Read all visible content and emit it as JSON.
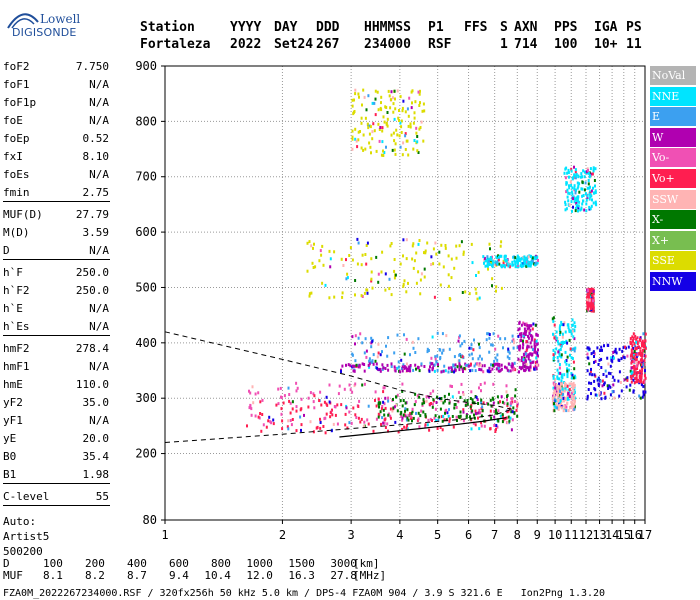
{
  "logo": {
    "line1": "Lowell",
    "line2": "DIGISONDE"
  },
  "header": {
    "labels": [
      "Station",
      "YYYY",
      "DAY",
      "DDD",
      "HHMMSS",
      "P1",
      "FFS",
      "S",
      "AXN",
      "PPS",
      "IGA",
      "PS"
    ],
    "values": [
      "Fortaleza",
      "2022",
      "Set24",
      "267",
      "234000",
      "RSF",
      "",
      "1",
      "714",
      "100",
      "10+",
      "11"
    ]
  },
  "params": {
    "group1": [
      {
        "k": "foF2",
        "v": "7.750"
      },
      {
        "k": "foF1",
        "v": "N/A"
      },
      {
        "k": "foF1p",
        "v": "N/A"
      },
      {
        "k": "foE",
        "v": "N/A"
      },
      {
        "k": "foEp",
        "v": "0.52"
      },
      {
        "k": "fxI",
        "v": "8.10"
      },
      {
        "k": "foEs",
        "v": "N/A"
      },
      {
        "k": "fmin",
        "v": "2.75"
      }
    ],
    "group2": [
      {
        "k": "MUF(D)",
        "v": "27.79"
      },
      {
        "k": "M(D)",
        "v": "3.59"
      },
      {
        "k": "D",
        "v": "N/A"
      }
    ],
    "group3": [
      {
        "k": "h`F",
        "v": "250.0"
      },
      {
        "k": "h`F2",
        "v": "250.0"
      },
      {
        "k": "h`E",
        "v": "N/A"
      },
      {
        "k": "h`Es",
        "v": "N/A"
      }
    ],
    "group4": [
      {
        "k": "hmF2",
        "v": "278.4"
      },
      {
        "k": "hmF1",
        "v": "N/A"
      },
      {
        "k": "hmE",
        "v": "110.0"
      },
      {
        "k": "yF2",
        "v": "35.0"
      },
      {
        "k": "yF1",
        "v": "N/A"
      },
      {
        "k": "yE",
        "v": "20.0"
      },
      {
        "k": "B0",
        "v": "35.4"
      },
      {
        "k": "B1",
        "v": "1.98"
      }
    ],
    "group5": [
      {
        "k": "C-level",
        "v": "55"
      }
    ]
  },
  "auto": {
    "line1": "Auto:",
    "line2": "Artist5",
    "line3": "500200"
  },
  "muf_table": {
    "d_label": "D",
    "d_values": [
      "100",
      "200",
      "400",
      "600",
      "800",
      "1000",
      "1500",
      "3000"
    ],
    "d_unit": "[km]",
    "m_label": "MUF",
    "m_values": [
      "8.1",
      "8.2",
      "8.7",
      "9.4",
      "10.4",
      "12.0",
      "16.3",
      "27.8"
    ],
    "m_unit": "[MHz]"
  },
  "footer": "FZA0M_2022267234000.RSF / 320fx256h 50 kHz 5.0 km / DPS-4 FZA0M 904 / 3.9 S 321.6 E   Ion2Png 1.3.20",
  "legend": [
    {
      "name": "NoVal",
      "color": "#b4b4b4"
    },
    {
      "name": "NNE",
      "color": "#00e4ff"
    },
    {
      "name": "E",
      "color": "#3ca0f0"
    },
    {
      "name": "W",
      "color": "#b000b0"
    },
    {
      "name": "Vo-",
      "color": "#f050b4"
    },
    {
      "name": "Vo+",
      "color": "#ff1e50"
    },
    {
      "name": "SSW",
      "color": "#ffb4b4"
    },
    {
      "name": "X-",
      "color": "#007800"
    },
    {
      "name": "X+",
      "color": "#78be50"
    },
    {
      "name": "SSE",
      "color": "#dcdc00"
    },
    {
      "name": "NNW",
      "color": "#1400e6"
    }
  ],
  "chart_data": {
    "type": "scatter",
    "xlabel": "",
    "ylabel": "",
    "x_ticks": [
      1,
      2,
      3,
      4,
      5,
      6,
      7,
      8,
      9,
      10,
      11,
      12,
      13,
      14,
      15,
      16,
      17
    ],
    "y_ticks": [
      80,
      200,
      300,
      400,
      500,
      600,
      700,
      800,
      900
    ],
    "xlim": [
      1,
      17
    ],
    "ylim": [
      80,
      900
    ],
    "x_scale": "log",
    "grid": true,
    "legend_placement": "right",
    "clusters": [
      {
        "series": "SSE",
        "x": [
          3.0,
          4.6
        ],
        "y": [
          740,
          860
        ]
      },
      {
        "series": "SSE",
        "x": [
          2.3,
          7.5
        ],
        "y": [
          480,
          590
        ]
      },
      {
        "series": "NNE",
        "x": [
          6.5,
          9.0
        ],
        "y": [
          540,
          560
        ]
      },
      {
        "series": "E",
        "x": [
          3.0,
          8.0
        ],
        "y": [
          350,
          420
        ]
      },
      {
        "series": "W",
        "x": [
          2.8,
          8.0
        ],
        "y": [
          350,
          365
        ]
      },
      {
        "series": "Vo-",
        "x": [
          1.6,
          8.0
        ],
        "y": [
          250,
          330
        ]
      },
      {
        "series": "Vo+",
        "x": [
          1.6,
          8.0
        ],
        "y": [
          240,
          300
        ]
      },
      {
        "series": "X-",
        "x": [
          3.5,
          8.0
        ],
        "y": [
          260,
          310
        ]
      },
      {
        "series": "W",
        "x": [
          8.0,
          9.0
        ],
        "y": [
          350,
          440
        ]
      },
      {
        "series": "NNE",
        "x": [
          9.8,
          11.2
        ],
        "y": [
          300,
          450
        ]
      },
      {
        "series": "SSW",
        "x": [
          9.8,
          11.2
        ],
        "y": [
          280,
          330
        ]
      },
      {
        "series": "NNW",
        "x": [
          12.0,
          17.0
        ],
        "y": [
          300,
          400
        ]
      },
      {
        "series": "Vo+",
        "x": [
          15.5,
          17.0
        ],
        "y": [
          330,
          420
        ]
      },
      {
        "series": "NNE",
        "x": [
          10.5,
          12.7
        ],
        "y": [
          640,
          720
        ]
      },
      {
        "series": "Vo+",
        "x": [
          12.0,
          12.5
        ],
        "y": [
          460,
          500
        ]
      }
    ],
    "curves": [
      {
        "name": "profile",
        "style": "dashed",
        "x": [
          1.0,
          2.0,
          3.0,
          4.0,
          5.0,
          6.0,
          7.0,
          7.75
        ],
        "y": [
          420,
          370,
          340,
          315,
          300,
          292,
          287,
          280
        ]
      },
      {
        "name": "profile",
        "style": "dashed",
        "x": [
          1.0,
          2.0,
          3.0,
          4.0,
          5.0,
          6.0,
          7.0,
          7.75
        ],
        "y": [
          220,
          235,
          245,
          252,
          258,
          263,
          270,
          280
        ]
      },
      {
        "name": "trace",
        "style": "solid",
        "x": [
          2.8,
          3.5,
          4.5,
          5.5,
          6.5,
          7.5
        ],
        "y": [
          230,
          237,
          245,
          252,
          258,
          265
        ]
      }
    ]
  }
}
